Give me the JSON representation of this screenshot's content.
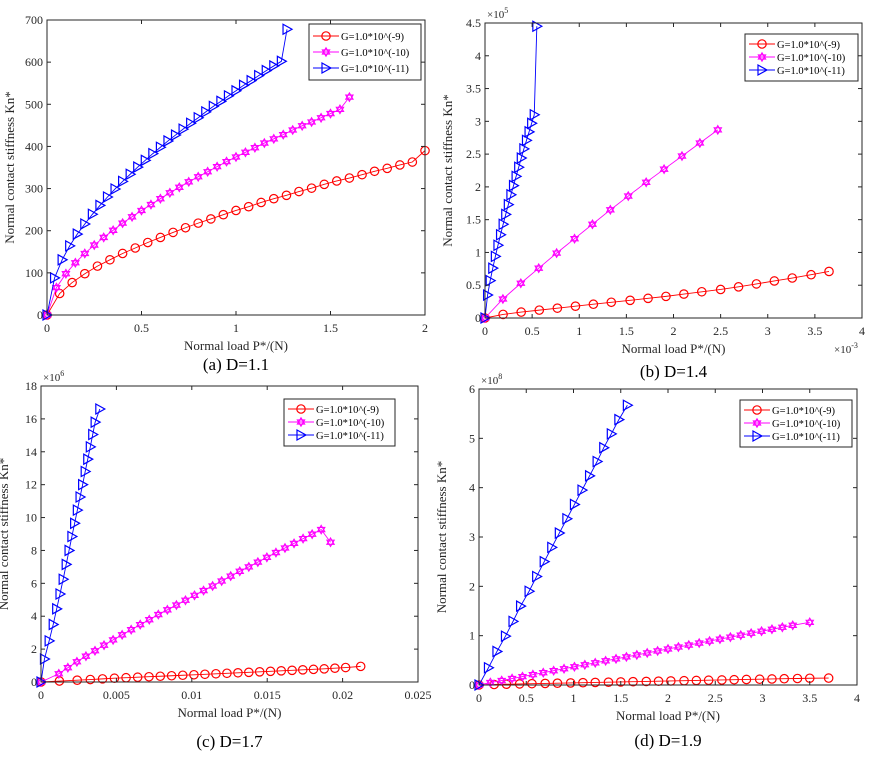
{
  "chart_data": [
    {
      "id": "a",
      "type": "line",
      "caption": "(a) D=1.1",
      "xlabel": "Normal load P*/(N)",
      "ylabel": "Normal contact stiffness Kn*",
      "xlim": [
        0,
        2
      ],
      "ylim": [
        0,
        700
      ],
      "xticks": [
        0,
        0.5,
        1,
        1.5,
        2
      ],
      "xtick_labels": [
        "0",
        "0.5",
        "1",
        "1.5",
        "2"
      ],
      "yticks": [
        0,
        100,
        200,
        300,
        400,
        500,
        600,
        700
      ],
      "ytick_labels": [
        "0",
        "100",
        "200",
        "300",
        "400",
        "500",
        "600",
        "700"
      ],
      "x_multiplier": "",
      "y_multiplier": "",
      "grid": false,
      "legend_position": "top-right",
      "series": [
        {
          "name": "G=1.0*10^(-9)",
          "color": "#ff0000",
          "marker": "circle",
          "x": [
            0,
            0.067,
            0.133,
            0.2,
            0.267,
            0.333,
            0.4,
            0.467,
            0.533,
            0.6,
            0.667,
            0.733,
            0.8,
            0.867,
            0.933,
            1.0,
            1.067,
            1.133,
            1.2,
            1.267,
            1.333,
            1.4,
            1.467,
            1.533,
            1.6,
            1.667,
            1.733,
            1.8,
            1.867,
            1.933,
            2.0
          ],
          "y": [
            0,
            51,
            77,
            98,
            116,
            131,
            146,
            159,
            172,
            184,
            196,
            207,
            218,
            228,
            238,
            248,
            257,
            267,
            276,
            284,
            293,
            301,
            310,
            318,
            325,
            333,
            341,
            348,
            356,
            363,
            390
          ]
        },
        {
          "name": "G=1.0*10^(-10)",
          "color": "#ff00ff",
          "marker": "hexagram",
          "x": [
            0,
            0.05,
            0.1,
            0.15,
            0.2,
            0.25,
            0.3,
            0.35,
            0.4,
            0.45,
            0.5,
            0.55,
            0.6,
            0.65,
            0.7,
            0.75,
            0.8,
            0.85,
            0.9,
            0.95,
            1.0,
            1.05,
            1.1,
            1.15,
            1.2,
            1.25,
            1.3,
            1.35,
            1.4,
            1.45,
            1.5,
            1.55,
            1.6
          ],
          "y": [
            0,
            65,
            98,
            124,
            146,
            166,
            184,
            201,
            218,
            233,
            248,
            262,
            276,
            290,
            303,
            316,
            328,
            340,
            352,
            364,
            375,
            386,
            397,
            408,
            418,
            428,
            439,
            449,
            458,
            468,
            478,
            488,
            517
          ]
        },
        {
          "name": "G=1.0*10^(-11)",
          "color": "#0000ff",
          "marker": "triangle-right",
          "x": [
            0,
            0.04,
            0.08,
            0.12,
            0.16,
            0.2,
            0.24,
            0.28,
            0.32,
            0.36,
            0.4,
            0.44,
            0.48,
            0.52,
            0.56,
            0.6,
            0.64,
            0.68,
            0.72,
            0.76,
            0.8,
            0.84,
            0.88,
            0.92,
            0.96,
            1.0,
            1.04,
            1.08,
            1.12,
            1.16,
            1.2,
            1.24,
            1.27
          ],
          "y": [
            0,
            88,
            131,
            164,
            192,
            216,
            239,
            260,
            280,
            299,
            317,
            334,
            351,
            367,
            383,
            398,
            413,
            427,
            441,
            455,
            468,
            482,
            495,
            507,
            520,
            532,
            545,
            556,
            568,
            580,
            591,
            602,
            678
          ]
        }
      ]
    },
    {
      "id": "b",
      "type": "line",
      "caption": "(b) D=1.4",
      "xlabel": "Normal load P*/(N)",
      "ylabel": "Normal contact stiffness Kn*",
      "xlim": [
        0,
        0.004
      ],
      "ylim": [
        0,
        450000
      ],
      "xticks": [
        0,
        0.0005,
        0.001,
        0.0015,
        0.002,
        0.0025,
        0.003,
        0.0035,
        0.004
      ],
      "xtick_labels": [
        "0",
        "0.5",
        "1",
        "1.5",
        "2",
        "2.5",
        "3",
        "3.5",
        "4"
      ],
      "yticks": [
        0,
        50000,
        100000,
        150000,
        200000,
        250000,
        300000,
        350000,
        400000,
        450000
      ],
      "ytick_labels": [
        "0",
        "0.5",
        "1",
        "1.5",
        "2",
        "2.5",
        "3",
        "3.5",
        "4",
        "4.5"
      ],
      "x_multiplier": "×10-3",
      "y_multiplier": "×105",
      "grid": false,
      "legend_position": "top-right",
      "series": [
        {
          "name": "G=1.0*10^(-9)",
          "color": "#ff0000",
          "marker": "circle",
          "x": [
            0,
            0.000192,
            0.000384,
            0.000576,
            0.000768,
            0.00096,
            0.00115,
            0.00134,
            0.00154,
            0.00173,
            0.00192,
            0.00211,
            0.0023,
            0.0025,
            0.00269,
            0.00288,
            0.00307,
            0.00326,
            0.00346,
            0.00365
          ],
          "y": [
            0,
            5500,
            9000,
            12000,
            15000,
            18000,
            21000,
            24000,
            27000,
            30000,
            33000,
            36500,
            40000,
            43500,
            47500,
            52000,
            56500,
            61000,
            66000,
            71000
          ]
        },
        {
          "name": "G=1.0*10^(-10)",
          "color": "#ff00ff",
          "marker": "hexagram",
          "x": [
            0,
            0.00019,
            0.00038,
            0.00057,
            0.00076,
            0.00095,
            0.00114,
            0.00133,
            0.00152,
            0.00171,
            0.0019,
            0.00209,
            0.00228,
            0.00247
          ],
          "y": [
            0,
            29000,
            53000,
            76000,
            99000,
            121000,
            143000,
            165000,
            186000,
            207000,
            227000,
            247000,
            267000,
            287000
          ]
        },
        {
          "name": "G=1.0*10^(-11)",
          "color": "#0000ff",
          "marker": "triangle-right",
          "x": [
            0,
            2.75e-05,
            5.5e-05,
            8.25e-05,
            0.00011,
            0.0001375,
            0.000165,
            0.0001925,
            0.00022,
            0.0002475,
            0.000275,
            0.0003025,
            0.00033,
            0.0003575,
            0.000385,
            0.0004125,
            0.00044,
            0.0004675,
            0.000495,
            0.0005225,
            0.00055
          ],
          "y": [
            0,
            35000,
            57000,
            76000,
            94000,
            111000,
            127000,
            143000,
            158000,
            173000,
            188000,
            202000,
            216000,
            230000,
            244000,
            258000,
            271000,
            284000,
            297000,
            310000,
            445000
          ]
        }
      ]
    },
    {
      "id": "c",
      "type": "line",
      "caption": "(c) D=1.7",
      "xlabel": "Normal load P*/(N)",
      "ylabel": "Normal contact stiffness Kn*",
      "xlim": [
        0,
        0.025
      ],
      "ylim": [
        0,
        18000000
      ],
      "xticks": [
        0,
        0.005,
        0.01,
        0.015,
        0.02,
        0.025
      ],
      "xtick_labels": [
        "0",
        "0.005",
        "0.01",
        "0.015",
        "0.02",
        "0.025"
      ],
      "yticks": [
        0,
        2000000,
        4000000,
        6000000,
        8000000,
        10000000,
        12000000,
        14000000,
        16000000,
        18000000
      ],
      "ytick_labels": [
        "0",
        "2",
        "4",
        "6",
        "8",
        "10",
        "12",
        "14",
        "16",
        "18"
      ],
      "x_multiplier": "",
      "y_multiplier": "×106",
      "grid": false,
      "legend_position": "top-right",
      "series": [
        {
          "name": "G=1.0*10^(-9)",
          "color": "#ff0000",
          "marker": "circle",
          "x": [
            0,
            0.00122,
            0.0024,
            0.00327,
            0.00408,
            0.00487,
            0.00564,
            0.00641,
            0.00716,
            0.00791,
            0.00866,
            0.0094,
            0.01014,
            0.01087,
            0.0116,
            0.01233,
            0.01306,
            0.01378,
            0.0145,
            0.01522,
            0.01593,
            0.01665,
            0.01736,
            0.01807,
            0.01878,
            0.01949,
            0.0202,
            0.0212
          ],
          "y": [
            0,
            60000,
            110000,
            150000,
            190000,
            230000,
            260000,
            290000,
            320000,
            350000,
            380000,
            410000,
            440000,
            470000,
            500000,
            530000,
            560000,
            590000,
            620000,
            650000,
            680000,
            710000,
            740000,
            770000,
            800000,
            840000,
            880000,
            950000
          ]
        },
        {
          "name": "G=1.0*10^(-10)",
          "color": "#ff00ff",
          "marker": "hexagram",
          "x": [
            0,
            0.00118,
            0.00178,
            0.00238,
            0.00298,
            0.00358,
            0.00418,
            0.00478,
            0.00538,
            0.00598,
            0.00658,
            0.00718,
            0.00778,
            0.00838,
            0.00898,
            0.00958,
            0.01018,
            0.01078,
            0.01138,
            0.01198,
            0.01258,
            0.01318,
            0.01378,
            0.01438,
            0.01498,
            0.01558,
            0.01618,
            0.01678,
            0.01738,
            0.01798,
            0.01858,
            0.0192
          ],
          "y": [
            0,
            500000,
            870000,
            1230000,
            1570000,
            1900000,
            2240000,
            2560000,
            2870000,
            3180000,
            3490000,
            3790000,
            4100000,
            4390000,
            4680000,
            4970000,
            5270000,
            5560000,
            5840000,
            6140000,
            6440000,
            6730000,
            7000000,
            7290000,
            7580000,
            7870000,
            8150000,
            8430000,
            8720000,
            8990000,
            9270000,
            8500000
          ]
        },
        {
          "name": "G=1.0*10^(-11)",
          "color": "#0000ff",
          "marker": "triangle-right",
          "x": [
            0,
            0.00023,
            0.00054,
            0.00081,
            0.00104,
            0.00126,
            0.00147,
            0.00167,
            0.00186,
            0.00205,
            0.00223,
            0.00241,
            0.00259,
            0.00276,
            0.00293,
            0.0031,
            0.00327,
            0.00343,
            0.00359,
            0.0039
          ],
          "y": [
            0,
            1400000,
            2500000,
            3500000,
            4450000,
            5350000,
            6250000,
            7150000,
            8000000,
            8850000,
            9650000,
            10450000,
            11250000,
            12000000,
            12800000,
            13550000,
            14300000,
            15050000,
            15800000,
            16600000
          ]
        }
      ]
    },
    {
      "id": "d",
      "type": "line",
      "caption": "(d) D=1.9",
      "xlabel": "Normal load P*/(N)",
      "ylabel": "Normal contact stiffness Kn*",
      "xlim": [
        0,
        4
      ],
      "ylim": [
        0,
        600000000
      ],
      "xticks": [
        0,
        0.5,
        1,
        1.5,
        2,
        2.5,
        3,
        3.5,
        4
      ],
      "xtick_labels": [
        "0",
        "0.5",
        "1",
        "1.5",
        "2",
        "2.5",
        "3",
        "3.5",
        "4"
      ],
      "yticks": [
        0,
        100000000,
        200000000,
        300000000,
        400000000,
        500000000,
        600000000
      ],
      "ytick_labels": [
        "0",
        "1",
        "2",
        "3",
        "4",
        "5",
        "6"
      ],
      "x_multiplier": "",
      "y_multiplier": "×108",
      "grid": false,
      "legend_position": "top-right",
      "series": [
        {
          "name": "G=1.0*10^(-9)",
          "color": "#ff0000",
          "marker": "circle",
          "x": [
            0,
            0.16,
            0.29,
            0.43,
            0.56,
            0.7,
            0.83,
            0.97,
            1.1,
            1.23,
            1.37,
            1.5,
            1.63,
            1.77,
            1.9,
            2.03,
            2.17,
            2.3,
            2.43,
            2.57,
            2.7,
            2.83,
            2.97,
            3.1,
            3.23,
            3.37,
            3.5,
            3.7
          ],
          "y": [
            0,
            1000000,
            1600000,
            2200000,
            2700000,
            3200000,
            3700000,
            4200000,
            4700000,
            5200000,
            5700000,
            6200000,
            6700000,
            7200000,
            7700000,
            8200000,
            8700000,
            9200000,
            9700000,
            10200000,
            10700000,
            11200000,
            11700000,
            12200000,
            12700000,
            13200000,
            13700000,
            14000000
          ]
        },
        {
          "name": "G=1.0*10^(-10)",
          "color": "#ff00ff",
          "marker": "hexagram",
          "x": [
            0,
            0.12,
            0.24,
            0.35,
            0.46,
            0.57,
            0.68,
            0.79,
            0.9,
            1.01,
            1.12,
            1.23,
            1.34,
            1.45,
            1.56,
            1.67,
            1.78,
            1.89,
            2.0,
            2.11,
            2.22,
            2.33,
            2.44,
            2.55,
            2.66,
            2.77,
            2.88,
            2.99,
            3.1,
            3.21,
            3.32,
            3.5
          ],
          "y": [
            0,
            5000000,
            9000000,
            13000000,
            17000000,
            21000000,
            25000000,
            29000000,
            33000000,
            37000000,
            41000000,
            45000000,
            49000000,
            53000000,
            57000000,
            61000000,
            65000000,
            69000000,
            73000000,
            77000000,
            81000000,
            85000000,
            89000000,
            93000000,
            97000000,
            101000000,
            105000000,
            109000000,
            113000000,
            117000000,
            121000000,
            127000000
          ]
        },
        {
          "name": "G=1.0*10^(-11)",
          "color": "#0000ff",
          "marker": "triangle-right",
          "x": [
            0,
            0.1,
            0.19,
            0.28,
            0.36,
            0.44,
            0.53,
            0.61,
            0.69,
            0.77,
            0.85,
            0.93,
            1.01,
            1.09,
            1.17,
            1.25,
            1.32,
            1.4,
            1.48,
            1.57
          ],
          "y": [
            0,
            35000000,
            68000000,
            99000000,
            129000000,
            160000000,
            190000000,
            220000000,
            250000000,
            279000000,
            308000000,
            337000000,
            366000000,
            395000000,
            424000000,
            453000000,
            481000000,
            509000000,
            538000000,
            567000000
          ]
        }
      ]
    }
  ]
}
